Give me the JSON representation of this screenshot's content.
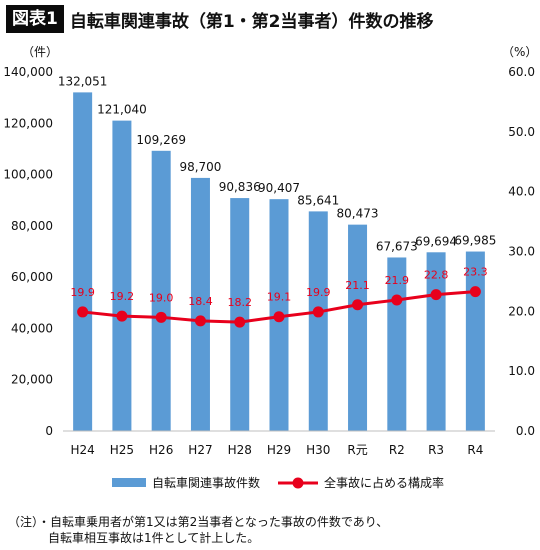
{
  "header": {
    "tag": "図表1",
    "title": "自転車関連事故（第1・第2当事者）件数の推移"
  },
  "chart_data": {
    "type": "bar",
    "categories": [
      "H24",
      "H25",
      "H26",
      "H27",
      "H28",
      "H29",
      "H30",
      "R元",
      "R2",
      "R3",
      "R4"
    ],
    "series": [
      {
        "name": "自転車関連事故件数",
        "type": "bar",
        "axis": "left",
        "color": "#5b9bd5",
        "values": [
          132051,
          121040,
          109269,
          98700,
          90836,
          90407,
          85641,
          80473,
          67673,
          69694,
          69985
        ],
        "labels": [
          "132,051",
          "121,040",
          "109,269",
          "98,700",
          "90,836",
          "90,407",
          "85,641",
          "80,473",
          "67,673",
          "69,694",
          "69,985"
        ]
      },
      {
        "name": "全事故に占める構成率",
        "type": "line",
        "axis": "right",
        "color": "#e8001c",
        "values": [
          19.9,
          19.2,
          19.0,
          18.4,
          18.2,
          19.1,
          19.9,
          21.1,
          21.9,
          22.8,
          23.3
        ],
        "labels": [
          "19.9",
          "19.2",
          "19.0",
          "18.4",
          "18.2",
          "19.1",
          "19.9",
          "21.1",
          "21.9",
          "22.8",
          "23.3"
        ]
      }
    ],
    "left_axis": {
      "unit": "（件）",
      "ylim": [
        0,
        140000
      ],
      "ticks": [
        "0",
        "20,000",
        "40,000",
        "60,000",
        "80,000",
        "100,000",
        "120,000",
        "140,000"
      ]
    },
    "right_axis": {
      "unit": "（%）",
      "ylim": [
        0,
        60
      ],
      "ticks": [
        "0.0",
        "10.0",
        "20.0",
        "30.0",
        "40.0",
        "50.0",
        "60.0"
      ]
    },
    "legend_position": "bottom",
    "grid": false
  },
  "note": {
    "line1": "（注）・自転車乗用者が第1又は第2当事者となった事故の件数であり、",
    "line2": "自転車相互事故は1件として計上した。"
  }
}
